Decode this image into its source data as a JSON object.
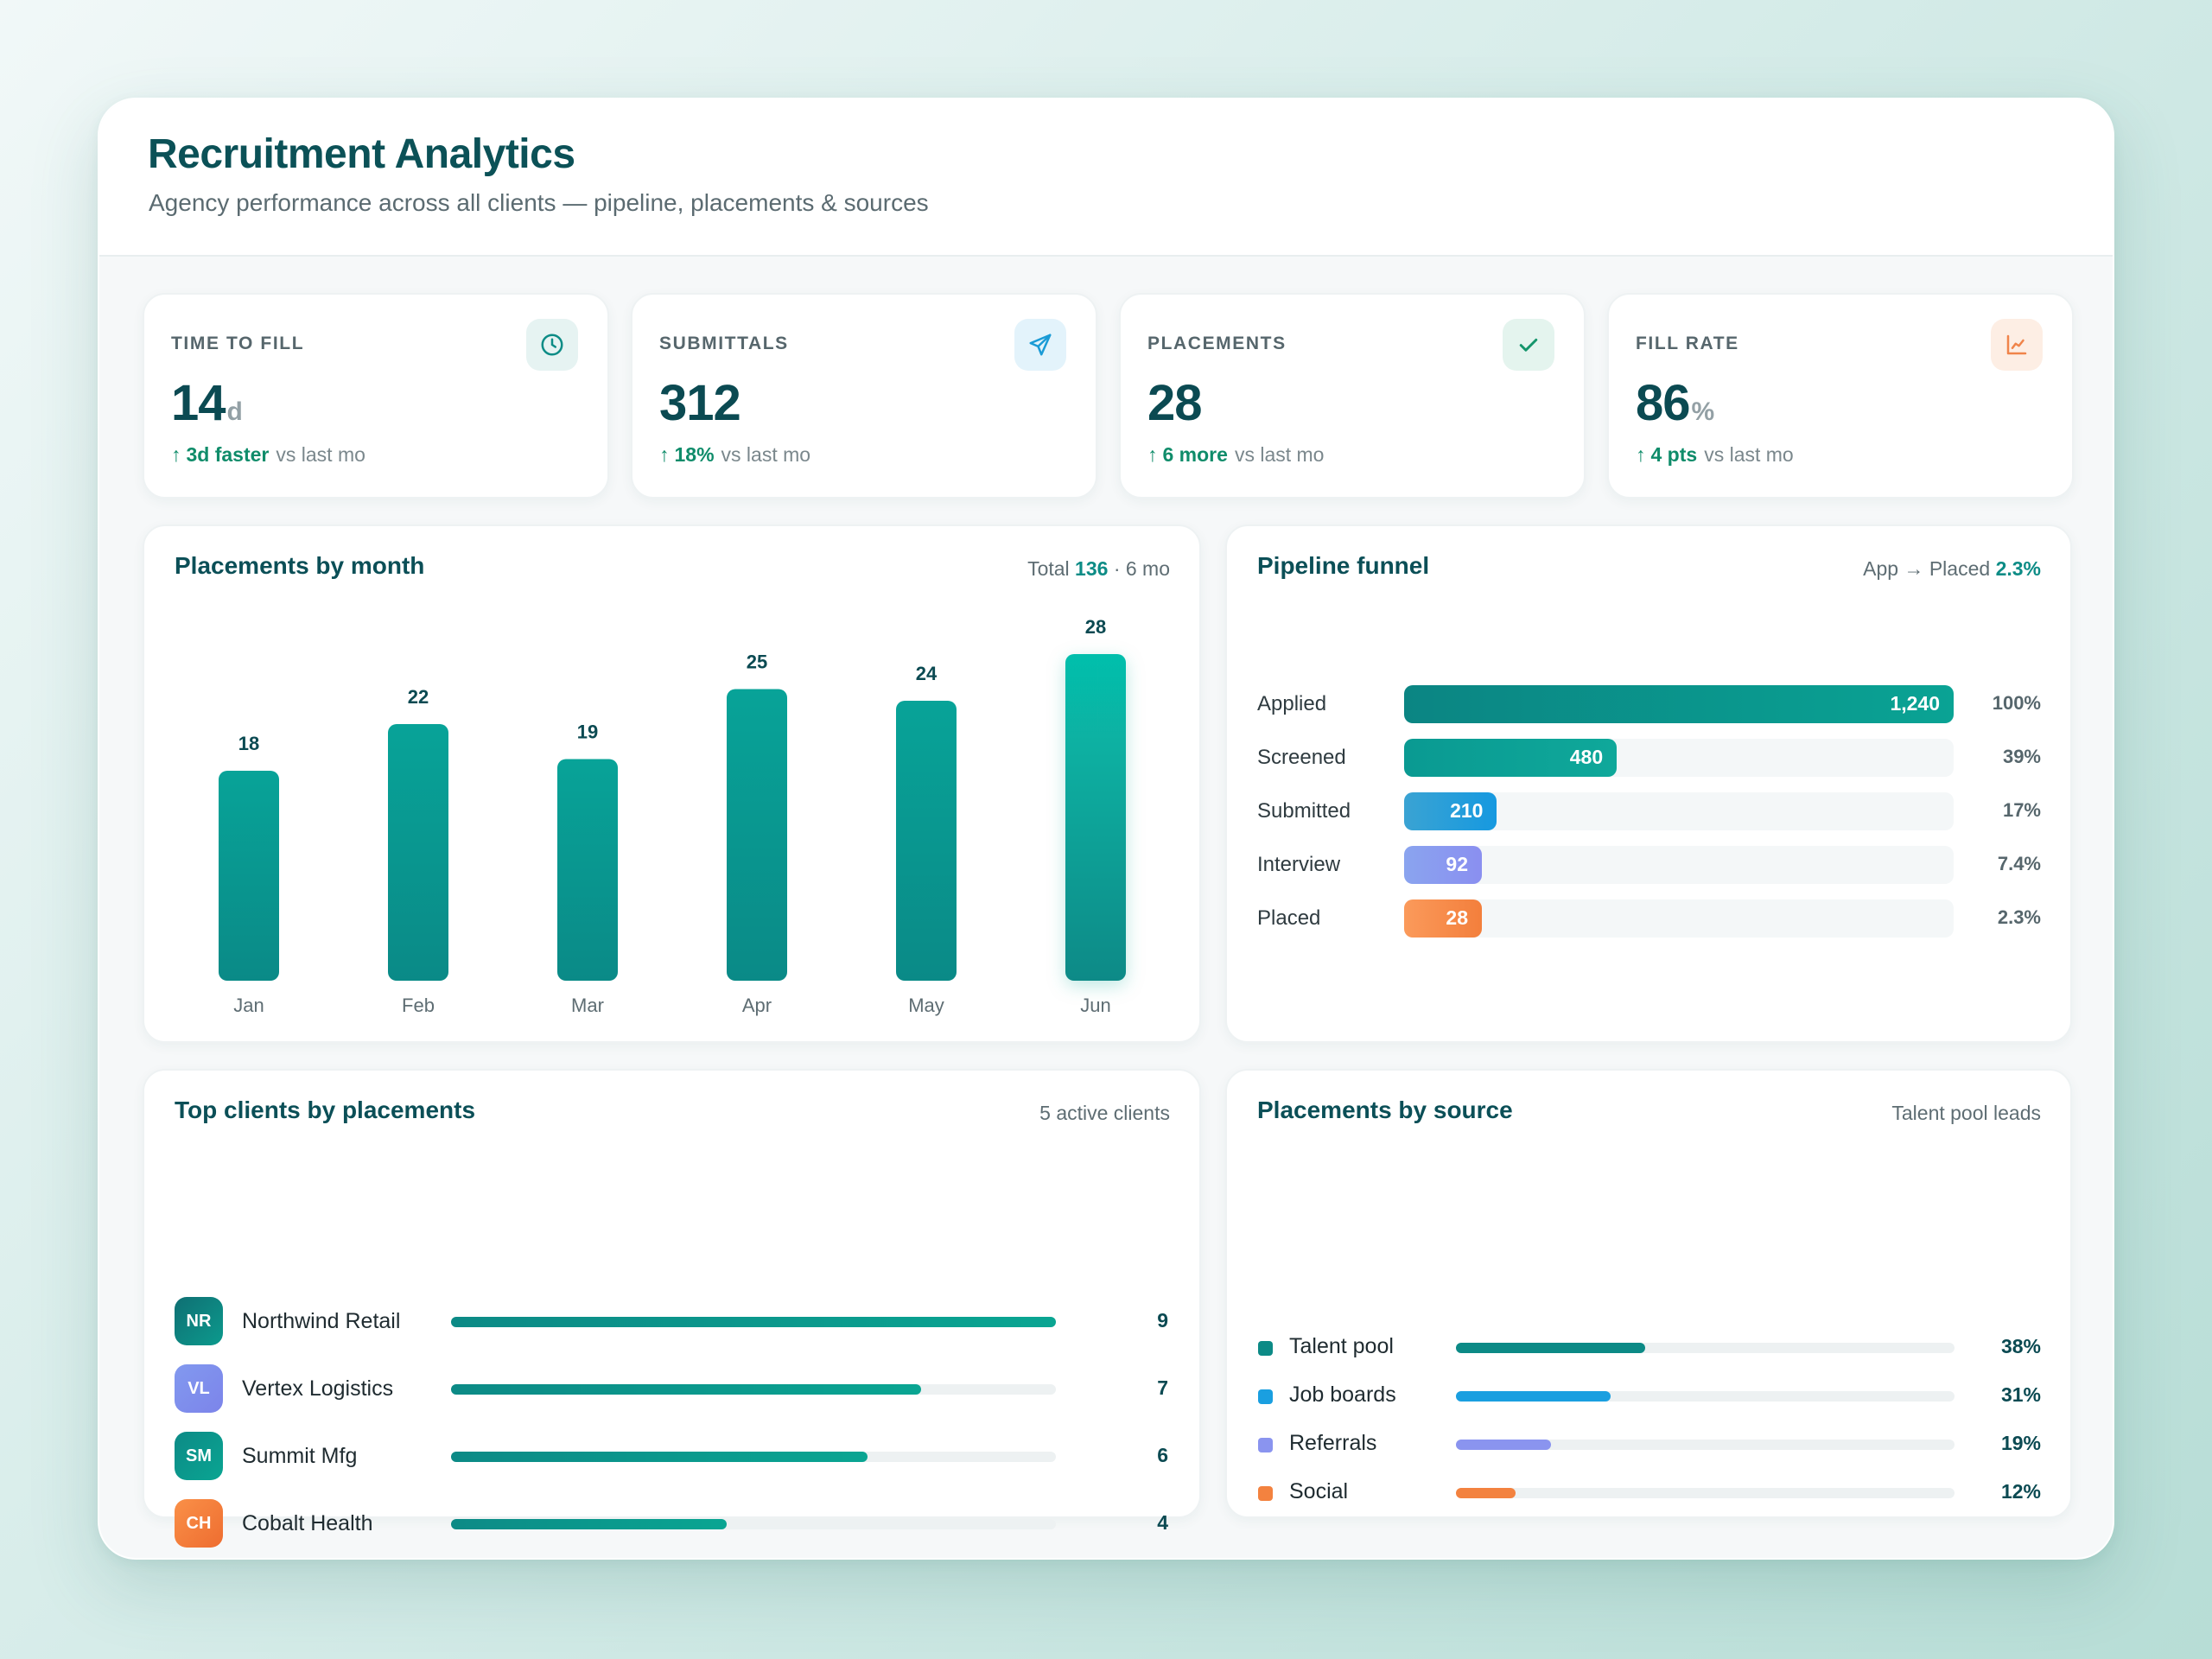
{
  "header": {
    "title": "Recruitment Analytics",
    "subtitle": "Agency performance across all clients — pipeline, placements & sources"
  },
  "kpis": [
    {
      "label": "TIME TO FILL",
      "value": "14",
      "unit": "d",
      "delta_arrow": "↑",
      "delta": "3d faster",
      "delta_suffix": "vs last mo",
      "icon": "clock-icon",
      "icon_bg": "#e6f3f2",
      "icon_color": "#0d8c86"
    },
    {
      "label": "SUBMITTALS",
      "value": "312",
      "unit": "",
      "delta_arrow": "↑",
      "delta": "18%",
      "delta_suffix": "vs last mo",
      "icon": "send-icon",
      "icon_bg": "#e3f3fb",
      "icon_color": "#1a9bd6"
    },
    {
      "label": "PLACEMENTS",
      "value": "28",
      "unit": "",
      "delta_arrow": "↑",
      "delta": "6 more",
      "delta_suffix": "vs last mo",
      "icon": "check-icon",
      "icon_bg": "#e4f4ee",
      "icon_color": "#14956b"
    },
    {
      "label": "FILL RATE",
      "value": "86",
      "unit": "%",
      "delta_arrow": "↑",
      "delta": "4 pts",
      "delta_suffix": "vs last mo",
      "icon": "line-chart-icon",
      "icon_bg": "#fdeee4",
      "icon_color": "#f0844a"
    }
  ],
  "placements_card": {
    "title": "Placements by month",
    "meta_prefix": "Total",
    "meta_total": "136",
    "meta_suffix": "· 6 mo"
  },
  "chart_data": {
    "type": "bar",
    "title": "Placements by month",
    "categories": [
      "Jan",
      "Feb",
      "Mar",
      "Apr",
      "May",
      "Jun"
    ],
    "values": [
      18,
      22,
      19,
      25,
      24,
      28
    ],
    "ylim": [
      0,
      28
    ],
    "grid": false,
    "colors": {
      "bar_top": "#08a398",
      "bar_bottom": "#0a8a87",
      "highlight_top": "#06bfac"
    }
  },
  "funnel": {
    "title": "Pipeline funnel",
    "meta_prefix": "App → Placed",
    "meta_value": "2.3%",
    "stages": [
      {
        "label": "Applied",
        "value": "1,240",
        "pct": "100%",
        "fraction": 1.0,
        "from": "#0b8583",
        "to": "#0aa394"
      },
      {
        "label": "Screened",
        "value": "480",
        "pct": "39%",
        "fraction": 0.387,
        "from": "#0a9a92",
        "to": "#0fa89a"
      },
      {
        "label": "Submitted",
        "value": "210",
        "pct": "17%",
        "fraction": 0.169,
        "from": "#3aa3d3",
        "to": "#1699e0"
      },
      {
        "label": "Interview",
        "value": "92",
        "pct": "7.4%",
        "fraction": 0.074,
        "from": "#8aa4ef",
        "to": "#8a8ff0"
      },
      {
        "label": "Placed",
        "value": "28",
        "pct": "2.3%",
        "fraction": 0.023,
        "from": "#fb9a5b",
        "to": "#f37f3c"
      }
    ]
  },
  "clients": {
    "title": "Top clients by placements",
    "meta": "5 active clients",
    "max": 9,
    "items": [
      {
        "initials": "NR",
        "name": "Northwind Retail",
        "count": "9",
        "value": 9,
        "avatar_from": "#0f6f73",
        "avatar_to": "#0c9a8d"
      },
      {
        "initials": "VL",
        "name": "Vertex Logistics",
        "count": "7",
        "value": 7,
        "avatar_from": "#8299ef",
        "avatar_to": "#7c84ea"
      },
      {
        "initials": "SM",
        "name": "Summit Mfg",
        "count": "6",
        "value": 6.2,
        "avatar_from": "#0c8a86",
        "avatar_to": "#0aa592"
      },
      {
        "initials": "CH",
        "name": "Cobalt Health",
        "count": "4",
        "value": 4.1,
        "avatar_from": "#fa9048",
        "avatar_to": "#ee6d30"
      }
    ]
  },
  "sources": {
    "title": "Placements by source",
    "meta": "Talent pool leads",
    "items": [
      {
        "name": "Talent pool",
        "pct": "38%",
        "value": 38,
        "color": "#0c8a86"
      },
      {
        "name": "Job boards",
        "pct": "31%",
        "value": 31,
        "color": "#1a9fe0"
      },
      {
        "name": "Referrals",
        "pct": "19%",
        "value": 19,
        "color": "#8a94ef"
      },
      {
        "name": "Social",
        "pct": "12%",
        "value": 12,
        "color": "#f3823f"
      }
    ]
  }
}
